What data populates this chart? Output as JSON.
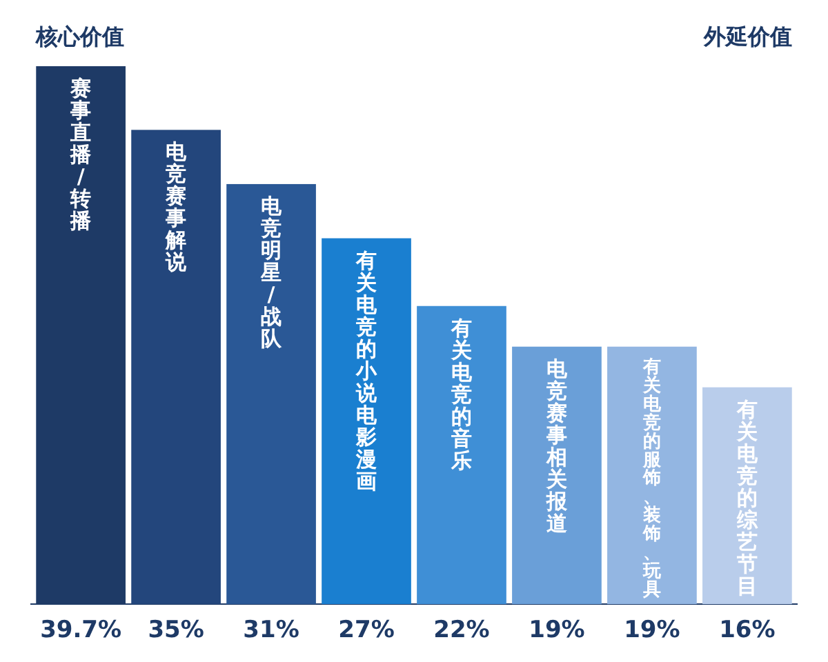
{
  "chart_data": {
    "type": "bar",
    "categories": [
      "赛事直播/转播",
      "电竞赛事解说",
      "电竞明星/战队",
      "有关电竞的小说电影漫画",
      "有关电竞的音乐",
      "电竞赛事相关报道",
      "有关电竞的服饰、装饰、玩具",
      "有关电竞的综艺节目"
    ],
    "values": [
      39.7,
      35,
      31,
      27,
      22,
      19,
      19,
      16
    ],
    "colors": [
      "#1e3a66",
      "#23467c",
      "#2a5896",
      "#1a7fd0",
      "#3f8fd6",
      "#6a9fd8",
      "#93b6e2",
      "#b9cdeb"
    ],
    "value_labels": [
      "39.7%",
      "35%",
      "31%",
      "27%",
      "22%",
      "19%",
      "19%",
      "16%"
    ],
    "annotations": [
      "核心价值",
      "外延价值"
    ]
  }
}
